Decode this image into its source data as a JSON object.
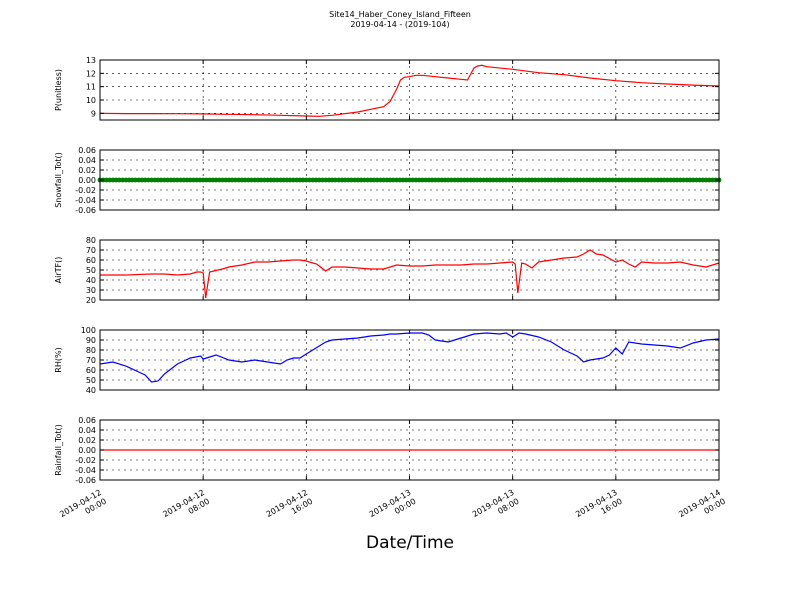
{
  "figure": {
    "title_line1": "Site14_Haber_Coney_Island_Fifteen",
    "title_line2": "2019-04-14 - (2019-104)",
    "xlabel": "Date/Time"
  },
  "x_ticks": [
    {
      "line1": "2019-04-12",
      "line2": "00:00"
    },
    {
      "line1": "2019-04-12",
      "line2": "08:00"
    },
    {
      "line1": "2019-04-12",
      "line2": "16:00"
    },
    {
      "line1": "2019-04-13",
      "line2": "00:00"
    },
    {
      "line1": "2019-04-13",
      "line2": "08:00"
    },
    {
      "line1": "2019-04-13",
      "line2": "16:00"
    },
    {
      "line1": "2019-04-14",
      "line2": "00:00"
    }
  ],
  "chart_data": [
    {
      "type": "line",
      "ylabel": "P(unitless)",
      "ylim": [
        8.5,
        13
      ],
      "yticks": [
        9,
        10,
        11,
        12,
        13
      ],
      "color": "#ff0000",
      "grid": true,
      "x_units": "hours since 2019-04-12 00:00",
      "xlim": [
        0,
        48
      ],
      "x": [
        0,
        2,
        4,
        6,
        8,
        10,
        12,
        14,
        16,
        17,
        18,
        20,
        21,
        22,
        22.5,
        23,
        23.3,
        23.6,
        24,
        24.5,
        25,
        26,
        27,
        28,
        28.5,
        29,
        29.3,
        29.6,
        30,
        32,
        34,
        36,
        38,
        40,
        42,
        44,
        46,
        48
      ],
      "y": [
        9.0,
        8.98,
        8.98,
        8.97,
        8.96,
        8.93,
        8.9,
        8.85,
        8.8,
        8.78,
        8.85,
        9.1,
        9.3,
        9.5,
        9.9,
        10.8,
        11.5,
        11.7,
        11.75,
        11.85,
        11.85,
        11.75,
        11.65,
        11.55,
        11.5,
        12.4,
        12.55,
        12.6,
        12.5,
        12.3,
        12.05,
        11.9,
        11.65,
        11.45,
        11.3,
        11.2,
        11.12,
        11.05
      ]
    },
    {
      "type": "scatter",
      "ylabel": "Snowfall_Tot()",
      "ylim": [
        -0.06,
        0.06
      ],
      "yticks": [
        -0.06,
        -0.04,
        -0.02,
        0.0,
        0.02,
        0.04,
        0.06
      ],
      "color": "#008000",
      "grid": true,
      "x_units": "hours since 2019-04-12 00:00",
      "xlim": [
        0,
        48
      ],
      "x_start": 0,
      "x_end": 48,
      "x_step": 0.25,
      "value": 0.0
    },
    {
      "type": "line",
      "ylabel": "AirTF()",
      "ylim": [
        20,
        80
      ],
      "yticks": [
        20,
        30,
        40,
        50,
        60,
        70,
        80
      ],
      "color": "#ff0000",
      "grid": true,
      "x_units": "hours since 2019-04-12 00:00",
      "xlim": [
        0,
        48
      ],
      "x": [
        0,
        2,
        4,
        5,
        6,
        7,
        7.5,
        7.8,
        8.0,
        8.2,
        8.5,
        9.5,
        10,
        11,
        12,
        13,
        14,
        15,
        15.5,
        16,
        16.5,
        16.8,
        17,
        17.5,
        18,
        19,
        20,
        21,
        21.5,
        22,
        23,
        24,
        25,
        26,
        27,
        28,
        29,
        30,
        31,
        32,
        32.2,
        32.4,
        32.7,
        33,
        33.5,
        34,
        35,
        36,
        37,
        37.5,
        38,
        38.5,
        39,
        40,
        40.5,
        41,
        41.5,
        42,
        43,
        44,
        45,
        46,
        47,
        48
      ],
      "y": [
        45,
        45,
        46,
        46,
        45,
        46,
        48,
        48,
        47,
        22,
        48,
        51,
        53,
        55,
        58,
        58,
        59,
        60,
        60,
        59,
        57,
        56,
        54,
        49,
        53,
        53,
        52,
        51,
        51,
        51,
        55,
        54,
        54,
        55,
        55,
        55,
        56,
        56,
        57,
        58,
        56,
        27,
        57,
        56,
        52,
        58,
        60,
        62,
        63,
        66,
        70,
        66,
        65,
        58,
        60,
        56,
        53,
        58,
        57,
        57,
        58,
        55,
        53,
        57
      ]
    },
    {
      "type": "line",
      "ylabel": "RH(%)",
      "ylim": [
        40,
        100
      ],
      "yticks": [
        40,
        50,
        60,
        70,
        80,
        90,
        100
      ],
      "color": "#0000ff",
      "grid": true,
      "x_units": "hours since 2019-04-12 00:00",
      "xlim": [
        0,
        48
      ],
      "x": [
        0,
        1,
        2,
        3,
        3.5,
        4,
        4.5,
        5,
        6,
        7,
        7.8,
        8,
        9,
        10,
        11,
        12,
        13,
        14,
        14.5,
        15,
        15.5,
        16,
        17,
        17.5,
        18,
        20,
        21,
        22,
        22.5,
        23,
        24,
        25,
        25.5,
        26,
        27,
        28,
        29,
        30,
        31,
        31.5,
        32,
        32.5,
        33,
        34,
        35,
        36,
        37,
        37.5,
        38,
        39,
        39.5,
        40,
        40.5,
        41,
        42,
        43,
        44,
        45,
        46,
        47,
        48
      ],
      "y": [
        66,
        68,
        64,
        58,
        55,
        48,
        49,
        56,
        66,
        72,
        74,
        71,
        75,
        70,
        68,
        70,
        68,
        66,
        70,
        72,
        72,
        76,
        84,
        88,
        90,
        92,
        94,
        95,
        96,
        96,
        97,
        97,
        95,
        90,
        88,
        92,
        96,
        97,
        96,
        97,
        93,
        97,
        96,
        93,
        88,
        80,
        74,
        68,
        70,
        72,
        75,
        82,
        76,
        88,
        86,
        85,
        84,
        82,
        87,
        90,
        91
      ]
    },
    {
      "type": "line",
      "ylabel": "Rainfall_Tot()",
      "ylim": [
        -0.06,
        0.06
      ],
      "yticks": [
        -0.06,
        -0.04,
        -0.02,
        0.0,
        0.02,
        0.04,
        0.06
      ],
      "color": "#ff0000",
      "grid": true,
      "x_units": "hours since 2019-04-12 00:00",
      "xlim": [
        0,
        48
      ],
      "x": [
        0,
        48
      ],
      "y": [
        0.0,
        0.0
      ]
    }
  ]
}
